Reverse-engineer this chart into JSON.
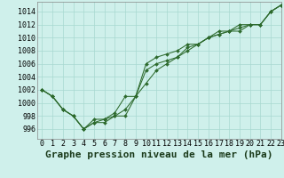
{
  "title": "Graphe pression niveau de la mer (hPa)",
  "background_color": "#cff0eb",
  "grid_color": "#a8d8d0",
  "line_color": "#2d6a2d",
  "marker_color": "#2d6a2d",
  "xlim": [
    -0.5,
    23
  ],
  "ylim": [
    994.5,
    1015.5
  ],
  "yticks": [
    996,
    998,
    1000,
    1002,
    1004,
    1006,
    1008,
    1010,
    1012,
    1014
  ],
  "xticks": [
    0,
    1,
    2,
    3,
    4,
    5,
    6,
    7,
    8,
    9,
    10,
    11,
    12,
    13,
    14,
    15,
    16,
    17,
    18,
    19,
    20,
    21,
    22,
    23
  ],
  "series": [
    [
      1002,
      1001,
      999,
      998,
      996,
      997,
      997,
      998,
      999,
      1001,
      1006,
      1007,
      1007.5,
      1008,
      1009,
      1009,
      1010,
      1010.5,
      1011,
      1012,
      1012,
      1012,
      1014,
      1015
    ],
    [
      1002,
      1001,
      999,
      998,
      996,
      997,
      997.5,
      998,
      998,
      1001,
      1005,
      1006,
      1006.5,
      1007,
      1008,
      1009,
      1010,
      1011,
      1011,
      1011,
      1012,
      1012,
      1014,
      1015
    ],
    [
      1002,
      1001,
      999,
      998,
      996,
      997.5,
      997.5,
      998.5,
      1001,
      1001,
      1003,
      1005,
      1006,
      1007,
      1008.5,
      1009,
      1010,
      1010.5,
      1011,
      1011.5,
      1012,
      1012,
      1014,
      1015
    ]
  ],
  "title_fontsize": 8,
  "tick_fontsize": 6
}
